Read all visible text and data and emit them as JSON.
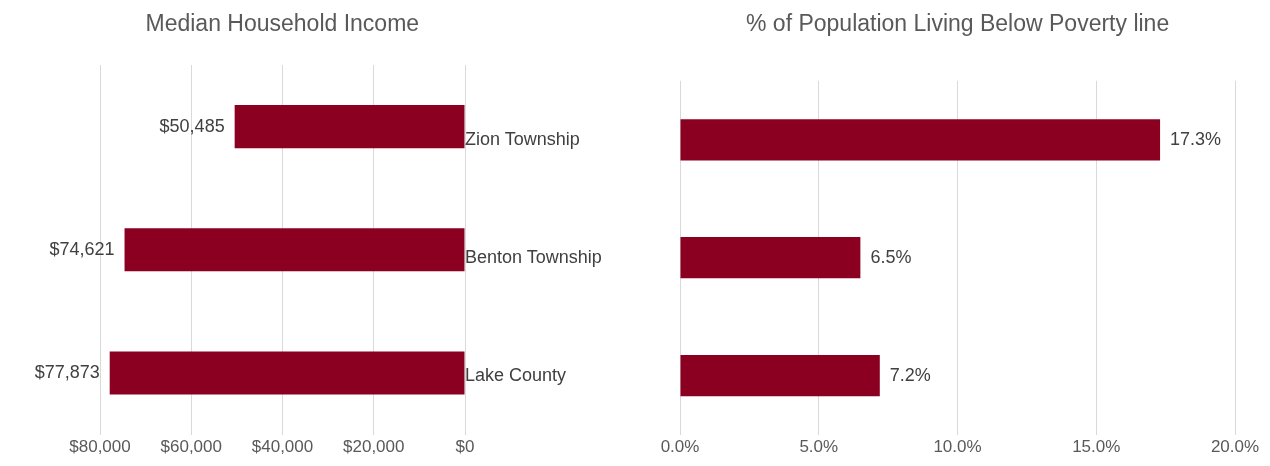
{
  "chart_data": [
    {
      "type": "bar",
      "title": "Median Household Income",
      "orientation": "horizontal",
      "categories": [
        null,
        null,
        null
      ],
      "values": [
        50485,
        74621,
        77873
      ],
      "color": "#8b0020",
      "value_labels": [
        "$50,485",
        "$74,621",
        "$77,873"
      ],
      "xlim": [
        80000,
        0
      ],
      "xticks": [
        {
          "value": 80000,
          "label": "$80,000"
        },
        {
          "value": 60000,
          "label": "$60,000"
        },
        {
          "value": 40000,
          "label": "$40,000"
        },
        {
          "value": 20000,
          "label": "$20,000"
        },
        {
          "value": 0,
          "label": "$0"
        }
      ],
      "grid": "x",
      "tick_labels": "x"
    },
    {
      "type": "bar",
      "title": "% of Population Living Below Poverty line",
      "orientation": "horizontal",
      "categories": [
        "Zion Township",
        "Benton Township",
        "Lake County"
      ],
      "values": [
        17.3,
        6.5,
        7.2
      ],
      "color": "#8b0020",
      "value_labels": [
        "17.3%",
        "6.5%",
        "7.2%"
      ],
      "xlim": [
        0,
        20
      ],
      "xticks": [
        {
          "value": 0,
          "label": "0.0%"
        },
        {
          "value": 5,
          "label": "5.0%"
        },
        {
          "value": 10,
          "label": "10.0%"
        },
        {
          "value": 15,
          "label": "15.0%"
        },
        {
          "value": 20,
          "label": "20.0%"
        }
      ],
      "grid": "x"
    }
  ]
}
